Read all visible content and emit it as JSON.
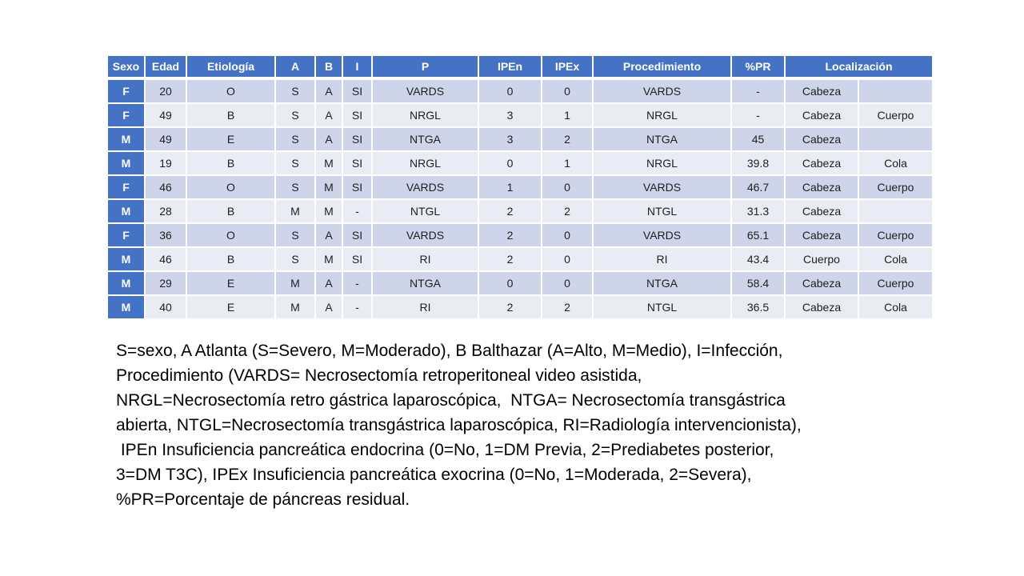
{
  "colors": {
    "accent_blue": "#4472C4",
    "band_dark": "#CED4E9",
    "band_light": "#E9EBF5",
    "header_text": "#FFFFFF",
    "cell_text": "#1F1F1F",
    "background": "#FFFFFF"
  },
  "table": {
    "columns": [
      {
        "id": "sexo",
        "label": "Sexo"
      },
      {
        "id": "edad",
        "label": "Edad"
      },
      {
        "id": "etiologia",
        "label": "Etiología"
      },
      {
        "id": "a",
        "label": "A"
      },
      {
        "id": "b",
        "label": "B"
      },
      {
        "id": "i",
        "label": "I"
      },
      {
        "id": "p",
        "label": "P"
      },
      {
        "id": "ipen",
        "label": "IPEn"
      },
      {
        "id": "ipex",
        "label": "IPEx"
      },
      {
        "id": "procedimiento",
        "label": "Procedimiento"
      },
      {
        "id": "pr",
        "label": "%PR"
      },
      {
        "id": "localizacion",
        "label": "Localización",
        "colspan": 2
      }
    ],
    "column_ids": [
      "sexo",
      "edad",
      "etiologia",
      "a",
      "b",
      "i",
      "p",
      "ipen",
      "ipex",
      "procedimiento",
      "pr",
      "localizacion-1",
      "localizacion-2"
    ],
    "rows": [
      [
        "F",
        "20",
        "O",
        "S",
        "A",
        "SI",
        "VARDS",
        "0",
        "0",
        "VARDS",
        "-",
        "Cabeza",
        ""
      ],
      [
        "F",
        "49",
        "B",
        "S",
        "A",
        "SI",
        "NRGL",
        "3",
        "1",
        "NRGL",
        "-",
        "Cabeza",
        "Cuerpo"
      ],
      [
        "M",
        "49",
        "E",
        "S",
        "A",
        "SI",
        "NTGA",
        "3",
        "2",
        "NTGA",
        "45",
        "Cabeza",
        ""
      ],
      [
        "M",
        "19",
        "B",
        "S",
        "M",
        "SI",
        "NRGL",
        "0",
        "1",
        "NRGL",
        "39.8",
        "Cabeza",
        "Cola"
      ],
      [
        "F",
        "46",
        "O",
        "S",
        "M",
        "SI",
        "VARDS",
        "1",
        "0",
        "VARDS",
        "46.7",
        "Cabeza",
        "Cuerpo"
      ],
      [
        "M",
        "28",
        "B",
        "M",
        "M",
        "-",
        "NTGL",
        "2",
        "2",
        "NTGL",
        "31.3",
        "Cabeza",
        ""
      ],
      [
        "F",
        "36",
        "O",
        "S",
        "A",
        "SI",
        "VARDS",
        "2",
        "0",
        "VARDS",
        "65.1",
        "Cabeza",
        "Cuerpo"
      ],
      [
        "M",
        "46",
        "B",
        "S",
        "M",
        "SI",
        "RI",
        "2",
        "0",
        "RI",
        "43.4",
        "Cuerpo",
        "Cola"
      ],
      [
        "M",
        "29",
        "E",
        "M",
        "A",
        "-",
        "NTGA",
        "0",
        "0",
        "NTGA",
        "58.4",
        "Cabeza",
        "Cuerpo"
      ],
      [
        "M",
        "40",
        "E",
        "M",
        "A",
        "-",
        "RI",
        "2",
        "2",
        "NTGL",
        "36.5",
        "Cabeza",
        "Cola"
      ]
    ]
  },
  "footnote_lines": [
    "S=sexo, A Atlanta (S=Severo, M=Moderado), B Balthazar (A=Alto, M=Medio), I=Infección,",
    "Procedimiento (VARDS= Necrosectomía retroperitoneal video asistida,",
    "NRGL=Necrosectomía retro gástrica laparoscópica,  NTGA= Necrosectomía transgástrica",
    "abierta, NTGL=Necrosectomía transgástrica laparoscópica, RI=Radiología intervencionista),",
    " IPEn Insuficiencia pancreática endocrina (0=No, 1=DM Previa, 2=Prediabetes posterior,",
    "3=DM T3C), IPEx Insuficiencia pancreática exocrina (0=No, 1=Moderada, 2=Severa),",
    "%PR=Porcentaje de páncreas residual."
  ]
}
